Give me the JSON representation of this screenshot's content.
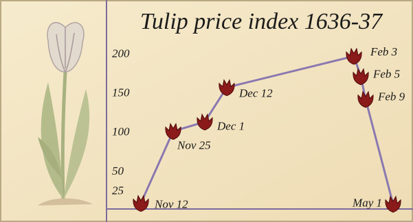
{
  "chart_data": {
    "type": "line",
    "title": "Tulip price index 1636-37",
    "categories": [
      "Nov 12",
      "Nov 25",
      "Dec 1",
      "Dec 12",
      "Feb 3",
      "Feb 5",
      "Feb 9",
      "May 1"
    ],
    "values": [
      10,
      102,
      114,
      158,
      198,
      172,
      143,
      9
    ],
    "color": "#8a78b0",
    "marker_color": "#8b1a1a",
    "ylim": [
      7,
      261
    ],
    "yticks": [
      25,
      50,
      100,
      150,
      200
    ],
    "grid": false
  }
}
